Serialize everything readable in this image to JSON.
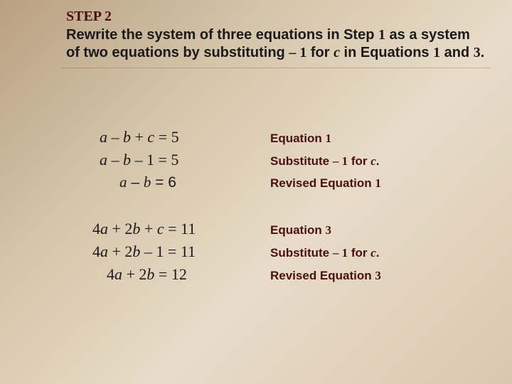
{
  "header": {
    "step_label": "STEP 2",
    "instruction_html": "Rewrite the system of three equations in Step <span class='num'>1</span> as a system of two equations by substituting <span class='num'>– 1</span> for <span class='it'>c</span> in Equations <span class='num'>1</span> and <span class='num'>3</span>."
  },
  "group1": {
    "row1": {
      "eq_html": "<span>a</span> <span class='op'>–</span> <span>b</span> <span class='op'>+</span> <span>c</span> <span class='op'>=</span> <span class='n'>5</span>",
      "label_html": "Equation <span class='num'>1</span>"
    },
    "row2": {
      "eq_html": "<span>a</span> <span class='op'>–</span> <span>b</span> <span class='op'>–</span> <span class='n'>1</span> <span class='op'>=</span> <span class='n'>5</span>",
      "label_html": "Substitute <span class='num'>– 1</span> for <span class='it'>c</span>."
    },
    "row3": {
      "eq_html": "<span class='it'>a</span> – <span class='it'>b</span> = 6",
      "label_html": "Revised Equation <span class='num'>1</span>"
    }
  },
  "group2": {
    "row1": {
      "eq_html": "<span class='n'>4</span><span>a</span> <span class='op'>+</span> <span class='n'>2</span><span>b</span> <span class='op'>+</span> <span>c</span> <span class='op'>=</span> <span class='n'>11</span>",
      "label_html": "Equation <span class='num'>3</span>"
    },
    "row2": {
      "eq_html": "<span class='n'>4</span><span>a</span> <span class='op'>+</span> <span class='n'>2</span><span>b</span> <span class='op'>–</span> <span class='n'>1</span> <span class='op'>=</span> <span class='n'>11</span>",
      "label_html": "Substitute <span class='num'>– 1</span> for <span class='it'>c</span>."
    },
    "row3": {
      "eq_html": "<span class='n'>4</span><span>a</span> <span class='op'>+</span> <span class='n'>2</span><span>b</span> <span class='op'>=</span> <span class='n'>12</span>",
      "label_html": "Revised Equation <span class='num'>3</span>"
    }
  },
  "colors": {
    "step_color": "#4a1010",
    "text_color": "#1a1a1a",
    "label_color": "#4a1010",
    "bg_gradient": [
      "#b8a082",
      "#d4c4a8",
      "#e8dcc8",
      "#d8c8b0"
    ]
  }
}
